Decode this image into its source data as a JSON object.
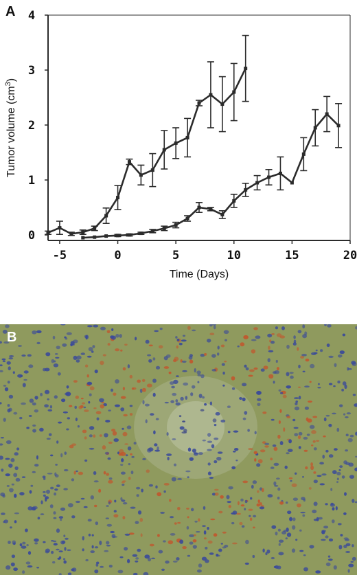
{
  "figure": {
    "panel_a_label": "A",
    "panel_b_label": "B"
  },
  "colors": {
    "line": "#2b2b2b",
    "axis": "#2b2b2b",
    "tissue_background": "#8f9a5e",
    "nuclei_stain": "#3a4a9a",
    "red_stain": "#c0582e"
  },
  "chart_data": {
    "type": "line",
    "title": "",
    "xlabel": "Time (Days)",
    "ylabel": "Tumor volume (cm3)",
    "ylabel_parts": {
      "main": "Tumor volume (cm",
      "superscript": "3",
      "suffix": ")"
    },
    "xlim": [
      -6,
      20
    ],
    "ylim": [
      -0.1,
      4
    ],
    "xticks": [
      -5,
      0,
      5,
      10,
      15,
      20
    ],
    "xtick_labels": [
      "-5",
      "0",
      "5",
      "10",
      "15",
      "20"
    ],
    "yticks": [
      0,
      1,
      2,
      3,
      4
    ],
    "ytick_labels": [
      "0",
      "1",
      "2",
      "3",
      "4"
    ],
    "grid": false,
    "legend": "none",
    "series": [
      {
        "points": [
          {
            "x": -6,
            "y": 0.04,
            "err": 0.03
          },
          {
            "x": -5,
            "y": 0.13,
            "err": 0.12
          },
          {
            "x": -4,
            "y": 0.02,
            "err": 0.03
          },
          {
            "x": -3,
            "y": 0.05,
            "err": 0.04
          },
          {
            "x": -2,
            "y": 0.12,
            "err": 0.04
          },
          {
            "x": -1,
            "y": 0.35,
            "err": 0.14
          },
          {
            "x": 0,
            "y": 0.68,
            "err": 0.22
          },
          {
            "x": 1,
            "y": 1.33,
            "err": 0.05
          },
          {
            "x": 2,
            "y": 1.09,
            "err": 0.18
          },
          {
            "x": 3,
            "y": 1.18,
            "err": 0.3
          },
          {
            "x": 4,
            "y": 1.55,
            "err": 0.35
          },
          {
            "x": 5,
            "y": 1.67,
            "err": 0.28
          },
          {
            "x": 6,
            "y": 1.77,
            "err": 0.35
          },
          {
            "x": 7,
            "y": 2.4,
            "err": 0.05
          },
          {
            "x": 8,
            "y": 2.55,
            "err": 0.6
          },
          {
            "x": 9,
            "y": 2.38,
            "err": 0.5
          },
          {
            "x": 10,
            "y": 2.6,
            "err": 0.52
          },
          {
            "x": 11,
            "y": 3.03,
            "err": 0.6
          }
        ]
      },
      {
        "points": [
          {
            "x": -3,
            "y": -0.05,
            "err": 0
          },
          {
            "x": -2,
            "y": -0.04,
            "err": 0
          },
          {
            "x": -1,
            "y": -0.02,
            "err": 0
          },
          {
            "x": 0,
            "y": -0.01,
            "err": 0.02
          },
          {
            "x": 1,
            "y": 0,
            "err": 0.02
          },
          {
            "x": 2,
            "y": 0.03,
            "err": 0.02
          },
          {
            "x": 3,
            "y": 0.07,
            "err": 0.03
          },
          {
            "x": 4,
            "y": 0.12,
            "err": 0.04
          },
          {
            "x": 5,
            "y": 0.18,
            "err": 0.05
          },
          {
            "x": 6,
            "y": 0.3,
            "err": 0.05
          },
          {
            "x": 7,
            "y": 0.5,
            "err": 0.09
          },
          {
            "x": 8,
            "y": 0.47,
            "err": 0.03
          },
          {
            "x": 9,
            "y": 0.37,
            "err": 0.07
          },
          {
            "x": 10,
            "y": 0.62,
            "err": 0.12
          },
          {
            "x": 11,
            "y": 0.82,
            "err": 0.12
          },
          {
            "x": 12,
            "y": 0.95,
            "err": 0.13
          },
          {
            "x": 13,
            "y": 1.05,
            "err": 0.14
          },
          {
            "x": 14,
            "y": 1.12,
            "err": 0.3
          },
          {
            "x": 15,
            "y": 0.95,
            "err": 0
          },
          {
            "x": 16,
            "y": 1.47,
            "err": 0.3
          },
          {
            "x": 17,
            "y": 1.95,
            "err": 0.33
          },
          {
            "x": 18,
            "y": 2.2,
            "err": 0.32
          },
          {
            "x": 19,
            "y": 1.99,
            "err": 0.4
          }
        ]
      }
    ]
  }
}
